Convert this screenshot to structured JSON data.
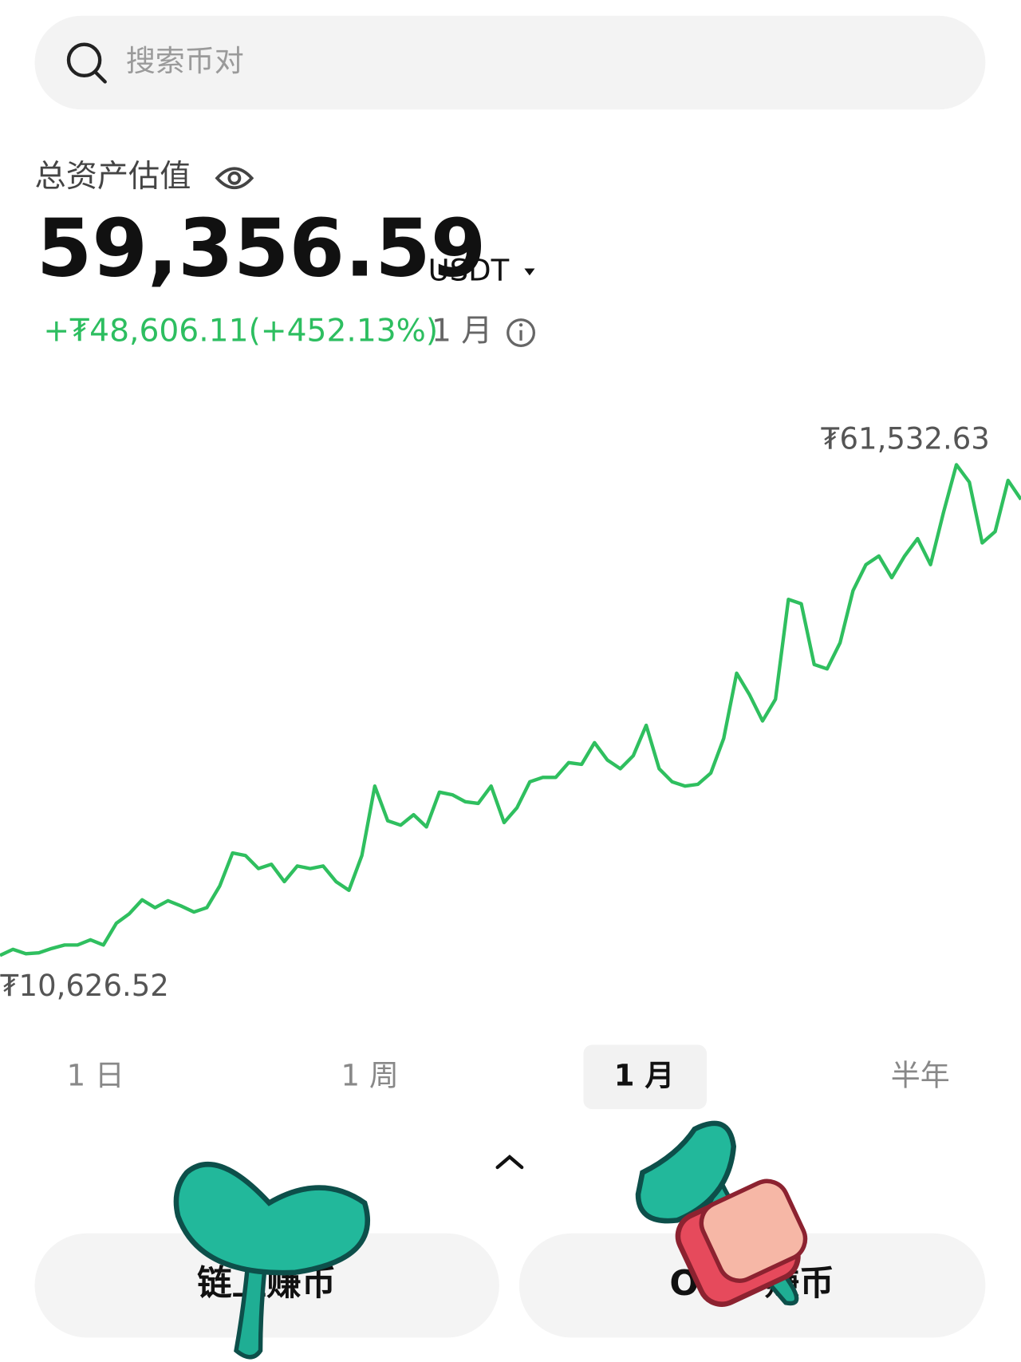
{
  "search": {
    "placeholder": "搜索币对"
  },
  "balance": {
    "label": "总资产估值",
    "amount": "59,356.59",
    "currency": "USDT",
    "change": "+₮48,606.11(+452.13%)",
    "period": "1 月"
  },
  "chart_data": {
    "type": "line",
    "color": "#2fbf5f",
    "min_label": "₮10,626.52",
    "max_label": "₮61,532.63",
    "values": [
      10626.52,
      11258,
      10807,
      10897,
      11348,
      11708,
      11708,
      12249,
      11708,
      13961,
      14952,
      16393,
      15583,
      16303,
      15763,
      15132,
      15583,
      17835,
      21259,
      20989,
      19637,
      20088,
      18286,
      19907,
      19637,
      19907,
      18286,
      17385,
      20989,
      28197,
      24593,
      24142,
      25223,
      23962,
      27566,
      27296,
      26575,
      26395,
      28197,
      24412,
      25944,
      28647,
      29098,
      29098,
      30629,
      30449,
      32702,
      30899,
      29999,
      31350,
      34504,
      29999,
      28647,
      28197,
      28377,
      29548,
      33152,
      39910,
      37657,
      34954,
      37207,
      47568,
      47118,
      40811,
      40360,
      43063,
      48469,
      51172,
      52073,
      49820,
      52073,
      53875,
      51172,
      56578,
      61532.63,
      59732,
      53425,
      54596,
      59912,
      57929
    ]
  },
  "tabs": [
    "1 日",
    "1 周",
    "1 月",
    "半年"
  ],
  "buttons": [
    "链上赚币",
    "OKX 赚币"
  ]
}
